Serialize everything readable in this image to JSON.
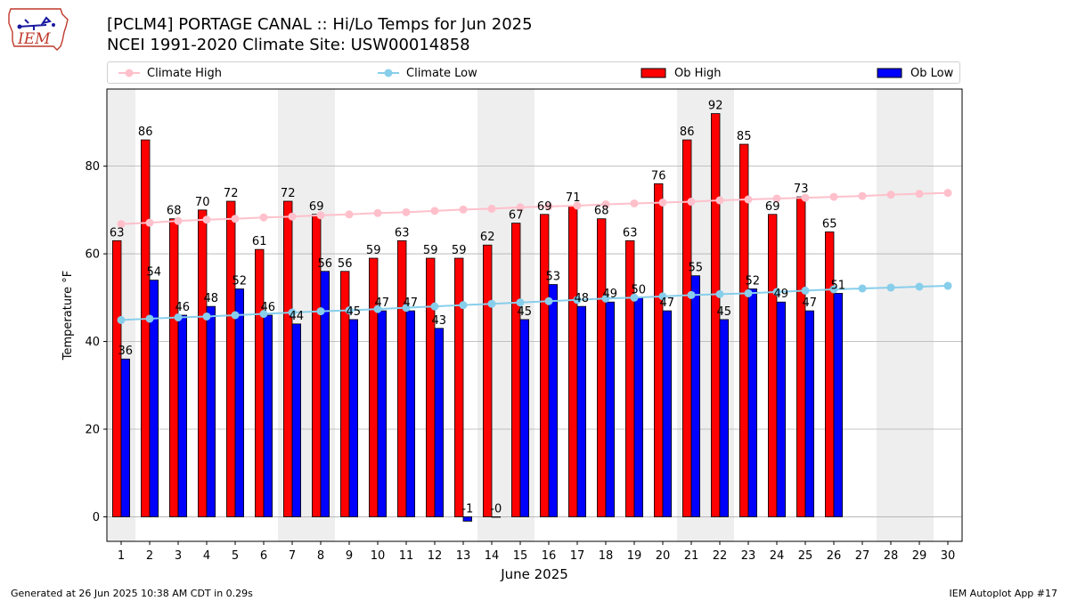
{
  "header": {
    "title_line1": "[PCLM4] PORTAGE CANAL :: Hi/Lo Temps for Jun 2025",
    "title_line2": "NCEI 1991-2020 Climate Site: USW00014858"
  },
  "logo": {
    "text": "IEM",
    "colors": {
      "outline": "#c0392b",
      "text": "#c0392b",
      "icon": "#1a1aa0"
    }
  },
  "footer": {
    "left": "Generated at 26 Jun 2025 10:38 AM CDT in 0.29s",
    "right": "IEM Autoplot App #17"
  },
  "legend": {
    "items": [
      {
        "label": "Climate High",
        "kind": "line",
        "color": "#ffc0cb"
      },
      {
        "label": "Climate Low",
        "kind": "line",
        "color": "#87ceeb"
      },
      {
        "label": "Ob High",
        "kind": "bar",
        "color": "#ff0000"
      },
      {
        "label": "Ob Low",
        "kind": "bar",
        "color": "#0000ff"
      }
    ],
    "placement": "top, above plot"
  },
  "chart_data": {
    "type": "bar",
    "xlabel": "June 2025",
    "ylabel": "Temperature °F",
    "ylim": [
      -5.6,
      97.6
    ],
    "xlim": [
      0.5,
      30.5
    ],
    "yticks": [
      0,
      20,
      40,
      60,
      80
    ],
    "grid": "horizontal",
    "weekend_shading_days": [
      1,
      7,
      8,
      14,
      15,
      21,
      22,
      28,
      29
    ],
    "weekend_color": "#eeeeee",
    "days": [
      1,
      2,
      3,
      4,
      5,
      6,
      7,
      8,
      9,
      10,
      11,
      12,
      13,
      14,
      15,
      16,
      17,
      18,
      19,
      20,
      21,
      22,
      23,
      24,
      25,
      26,
      27,
      28,
      29,
      30
    ],
    "series": [
      {
        "name": "Ob High",
        "color": "#ff0000",
        "values": [
          63,
          86,
          68,
          70,
          72,
          61,
          72,
          69,
          56,
          59,
          63,
          59,
          59,
          62,
          67,
          69,
          71,
          68,
          63,
          76,
          86,
          92,
          85,
          69,
          73,
          65
        ]
      },
      {
        "name": "Ob Low",
        "color": "#0000ff",
        "values": [
          36,
          54,
          46,
          48,
          52,
          46,
          44,
          56,
          45,
          47,
          47,
          43,
          -1,
          0,
          45,
          53,
          48,
          49,
          50,
          47,
          55,
          45,
          52,
          49,
          47,
          51
        ]
      },
      {
        "name": "Climate High",
        "color": "#ffc0cb",
        "values": [
          66.8,
          67.1,
          67.5,
          67.8,
          68.0,
          68.3,
          68.5,
          68.8,
          69.0,
          69.3,
          69.5,
          69.8,
          70.1,
          70.3,
          70.6,
          70.8,
          71.0,
          71.3,
          71.5,
          71.7,
          71.9,
          72.2,
          72.4,
          72.6,
          72.8,
          73.0,
          73.2,
          73.5,
          73.7,
          73.9
        ]
      },
      {
        "name": "Climate Low",
        "color": "#87ceeb",
        "values": [
          44.9,
          45.2,
          45.5,
          45.7,
          46.0,
          46.3,
          46.6,
          46.9,
          47.1,
          47.4,
          47.7,
          48.0,
          48.3,
          48.6,
          48.9,
          49.2,
          49.5,
          49.8,
          50.0,
          50.3,
          50.6,
          50.8,
          51.0,
          51.3,
          51.6,
          51.9,
          52.1,
          52.3,
          52.5,
          52.7
        ]
      }
    ]
  }
}
